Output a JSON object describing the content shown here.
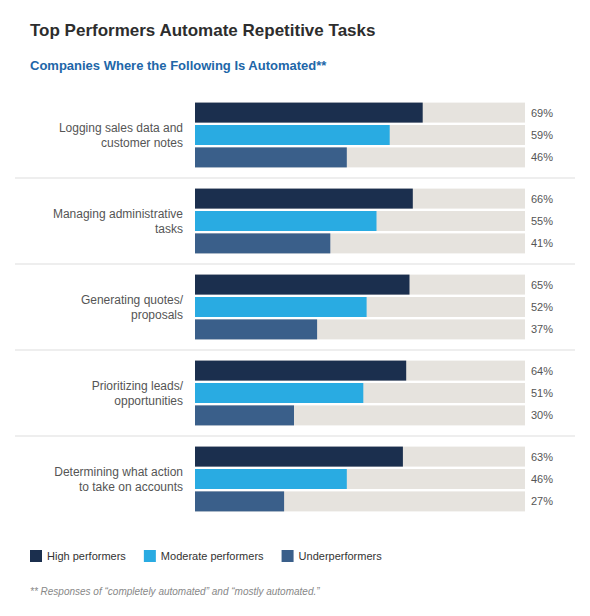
{
  "chart_data": {
    "type": "bar",
    "orientation": "horizontal",
    "title": "Top Performers Automate Repetitive Tasks",
    "subtitle": "Companies Where the Following Is Automated**",
    "annotations": [
      "** Responses of “completely automated” and “mostly automated.”"
    ],
    "categories": [
      "Logging sales data and\ncustomer notes",
      "Managing administrative\ntasks",
      "Generating quotes/\nproposals",
      "Prioritizing leads/\nopportunities",
      "Determining what action\nto take on accounts"
    ],
    "series": [
      {
        "name": "High performers",
        "color": "#1b2f4e",
        "values": [
          69,
          66,
          65,
          64,
          63
        ],
        "value_labels": [
          "69%",
          "66%",
          "65%",
          "64%",
          "63%"
        ]
      },
      {
        "name": "Moderate performers",
        "color": "#29abe2",
        "values": [
          59,
          55,
          52,
          51,
          46
        ],
        "value_labels": [
          "59%",
          "55%",
          "52%",
          "51%",
          "46%"
        ]
      },
      {
        "name": "Underperformers",
        "color": "#3a5f8a",
        "values": [
          46,
          41,
          37,
          30,
          27
        ],
        "value_labels": [
          "46%",
          "41%",
          "37%",
          "30%",
          "27%"
        ]
      }
    ],
    "xlim": [
      0,
      100
    ],
    "grid": false,
    "legend": "lower left",
    "data_labels": true,
    "tick_labels": false
  }
}
